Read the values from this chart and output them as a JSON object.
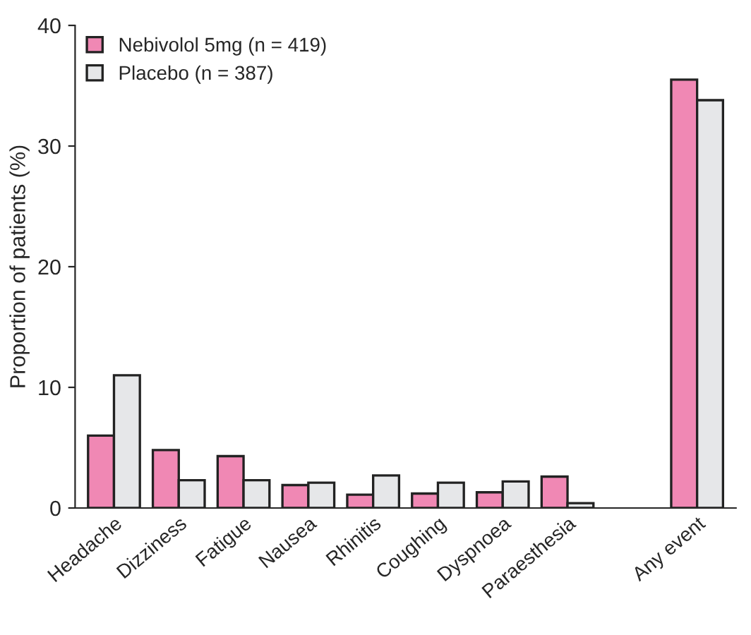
{
  "chart_data": {
    "type": "bar",
    "ylabel": "Proportion of patients (%)",
    "categories": [
      "Headache",
      "Dizziness",
      "Fatigue",
      "Nausea",
      "Rhinitis",
      "Coughing",
      "Dyspnoea",
      "Paraesthesia",
      null,
      "Any event"
    ],
    "series": [
      {
        "name": "Nebivolol 5mg (n = 419)",
        "color": "#f088b4",
        "values": [
          6.0,
          4.8,
          4.3,
          1.9,
          1.1,
          1.2,
          1.3,
          2.6,
          null,
          35.5
        ]
      },
      {
        "name": "Placebo (n = 387)",
        "color": "#e6e7e9",
        "values": [
          11.0,
          2.3,
          2.3,
          2.1,
          2.7,
          2.1,
          2.2,
          0.4,
          null,
          33.8
        ]
      }
    ],
    "ylim": [
      0,
      40
    ],
    "yticks": [
      0,
      10,
      20,
      30,
      40
    ],
    "grid": false,
    "legend": "top left"
  }
}
